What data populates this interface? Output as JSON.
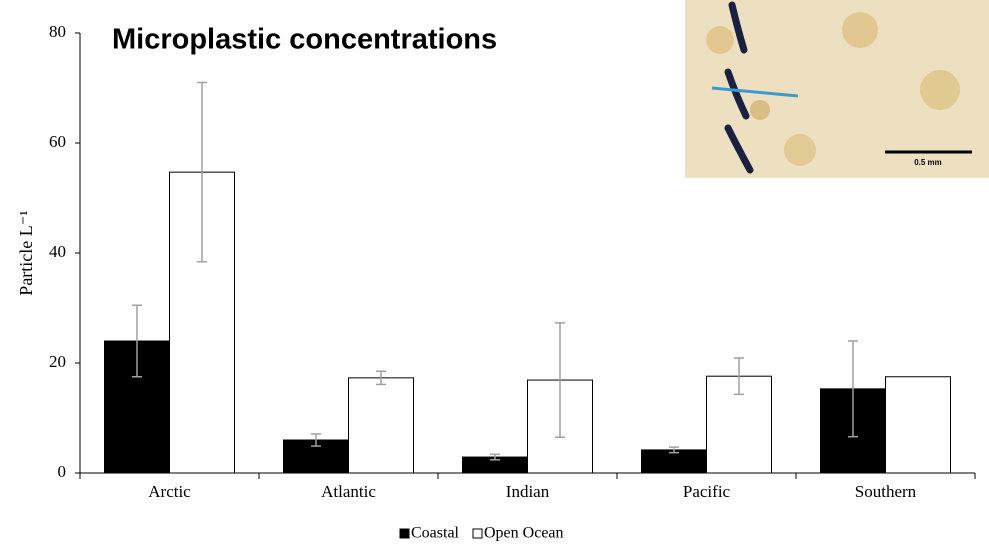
{
  "chart_data": {
    "type": "bar",
    "title": "Microplastic concentrations",
    "ylabel": "Particle  L⁻¹",
    "categories": [
      "Arctic",
      "Atlantic",
      "Indian",
      "Pacific",
      "Southern"
    ],
    "series": [
      {
        "name": "Coastal",
        "color": "#000000",
        "values": [
          24,
          6,
          2.9,
          4.2,
          15.3
        ],
        "errors": [
          6.5,
          1.1,
          0.5,
          0.5,
          8.7
        ]
      },
      {
        "name": "Open Ocean",
        "color": "#ffffff",
        "values": [
          54.7,
          17.3,
          16.9,
          17.6,
          17.5
        ],
        "errors": [
          16.3,
          1.2,
          10.4,
          3.3,
          null
        ]
      }
    ],
    "ylim": [
      0,
      80
    ],
    "yticks": [
      0,
      20,
      40,
      60,
      80
    ],
    "grid": false,
    "legend": "bottom",
    "inset": {
      "scale_label": "0.5 mm"
    }
  }
}
